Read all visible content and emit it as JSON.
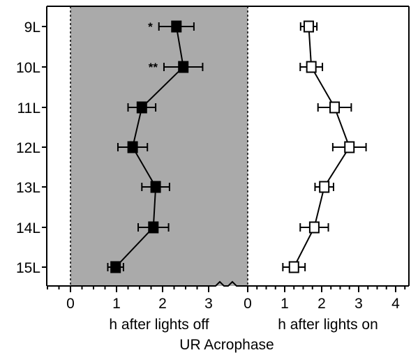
{
  "chart_data": {
    "type": "scatter",
    "categories": [
      "9L",
      "10L",
      "11L",
      "12L",
      "13L",
      "14L",
      "15L"
    ],
    "xlabel": "UR Acrophase",
    "panels": [
      {
        "name": "h after lights off",
        "xlim": [
          0,
          3.5
        ],
        "xticks": [
          "0",
          "1",
          "2",
          "3"
        ],
        "shaded": true,
        "marker": "filled-square",
        "values": [
          2.3,
          2.45,
          1.55,
          1.35,
          1.85,
          1.8,
          0.98
        ],
        "err": [
          0.38,
          0.42,
          0.3,
          0.32,
          0.3,
          0.33,
          0.17
        ],
        "annotations": [
          "*",
          "**",
          "",
          "",
          "",
          "",
          ""
        ]
      },
      {
        "name": "h after lights on",
        "xlim": [
          0,
          4.25
        ],
        "xticks": [
          "0",
          "1",
          "2",
          "3",
          "4"
        ],
        "shaded": false,
        "marker": "open-square",
        "values": [
          1.65,
          1.72,
          2.35,
          2.75,
          2.07,
          1.8,
          1.25
        ],
        "err": [
          0.22,
          0.3,
          0.45,
          0.45,
          0.25,
          0.38,
          0.3
        ],
        "annotations": [
          "",
          "",
          "",
          "",
          "",
          "",
          ""
        ]
      }
    ],
    "colors": {
      "shade": "#aaaaaa",
      "marker": "#000000",
      "line": "#000000"
    }
  }
}
